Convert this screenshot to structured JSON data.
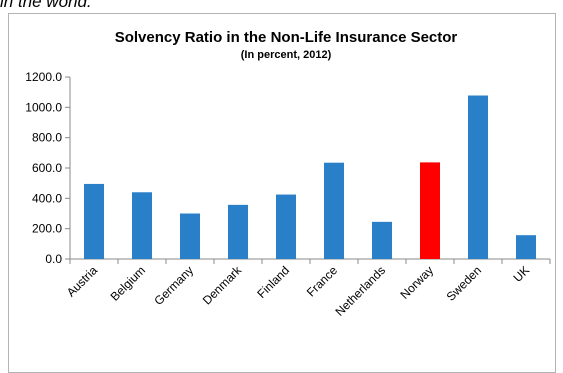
{
  "intro_text": "in the world.",
  "chart_data": {
    "type": "bar",
    "title": "Solvency Ratio in the Non-Life Insurance Sector",
    "subtitle": "(In percent, 2012)",
    "xlabel": "",
    "ylabel": "",
    "categories": [
      "Austria",
      "Belgium",
      "Germany",
      "Denmark",
      "Finland",
      "France",
      "Netherlands",
      "Norway",
      "Sweden",
      "UK"
    ],
    "values": [
      495,
      440,
      300,
      357,
      425,
      635,
      245,
      637,
      1078,
      157
    ],
    "ylim": [
      0,
      1200
    ],
    "yticks": [
      "0.0",
      "200.0",
      "400.0",
      "600.0",
      "800.0",
      "1000.0",
      "1200.0"
    ],
    "grid": false,
    "legend": "none",
    "colors": {
      "default_bar": "#2980c9",
      "highlight_bar": "#ff0000",
      "axis": "#888888"
    },
    "highlight_category": "Norway"
  }
}
